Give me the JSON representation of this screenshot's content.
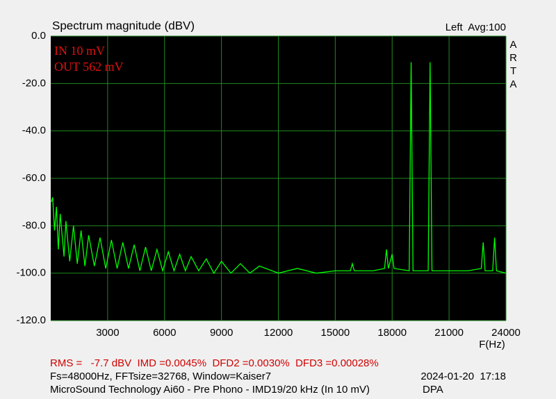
{
  "chart_data": {
    "type": "line",
    "title": "Spectrum magnitude (dBV)",
    "channel_label": "Left  Avg:100",
    "watermark": "ARTA",
    "annotations": [
      "IN 10 mV",
      "OUT 562 mV"
    ],
    "xlabel": "F(Hz)",
    "footer": {
      "measurements": "RMS =   -7.7 dBV  IMD =0.0045%  DFD2 =0.0030%  DFD3 =0.00028%",
      "settings": "Fs=48000Hz, FFTsize=32768, Window=Kaiser7",
      "timestamp": "2024-01-20  17:18",
      "description": "MicroSound Technology Ai60 - Pre Phono - IMD19/20 kHz (In 10 mV)",
      "author": "DPA"
    },
    "color": "#00ff00",
    "grid": true,
    "xlim": [
      0,
      24000
    ],
    "ylim": [
      -120,
      0
    ],
    "xticks": [
      3000,
      6000,
      9000,
      12000,
      15000,
      18000,
      21000,
      24000
    ],
    "yticks": [
      {
        "value": 0,
        "label": "0.0"
      },
      {
        "value": -20,
        "label": "-20.0"
      },
      {
        "value": -40,
        "label": "-40.0"
      },
      {
        "value": -60,
        "label": "-60.0"
      },
      {
        "value": -80,
        "label": "-80.0"
      },
      {
        "value": -100,
        "label": "-100.0"
      },
      {
        "value": -120,
        "label": "-120.0"
      }
    ],
    "x": [
      30,
      100,
      200,
      300,
      400,
      500,
      700,
      800,
      1000,
      1200,
      1400,
      1600,
      1800,
      2000,
      2300,
      2600,
      2900,
      3200,
      3500,
      3800,
      4100,
      4400,
      4700,
      5000,
      5300,
      5600,
      5900,
      6200,
      6500,
      6800,
      7100,
      7400,
      7800,
      8200,
      8600,
      9000,
      9500,
      10000,
      10500,
      11000,
      12000,
      13000,
      14000,
      15000,
      15800,
      15900,
      16000,
      17000,
      17600,
      17700,
      17800,
      18000,
      18100,
      18900,
      19000,
      19100,
      19900,
      20000,
      20100,
      21000,
      22000,
      22700,
      22800,
      22900,
      23300,
      23400,
      23500,
      24000
    ],
    "values": [
      -70,
      -68,
      -82,
      -72,
      -90,
      -75,
      -93,
      -78,
      -95,
      -80,
      -96,
      -82,
      -97,
      -84,
      -97,
      -85,
      -98,
      -86,
      -98,
      -87,
      -98,
      -88,
      -99,
      -89,
      -99,
      -90,
      -99,
      -91,
      -99,
      -92,
      -99,
      -93,
      -99,
      -94,
      -100,
      -95,
      -100,
      -96,
      -100,
      -97,
      -100,
      -98,
      -100,
      -99,
      -99,
      -96,
      -99,
      -99,
      -98,
      -90,
      -98,
      -92,
      -98,
      -99,
      -11,
      -99,
      -99,
      -11,
      -99,
      -99,
      -99,
      -98,
      -87,
      -99,
      -99,
      -85,
      -99,
      -100
    ]
  }
}
